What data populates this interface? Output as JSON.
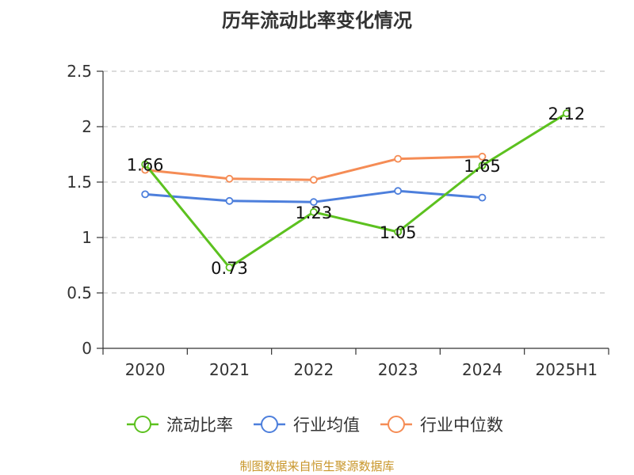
{
  "title": "历年流动比率变化情况",
  "source": "制图数据来自恒生聚源数据库",
  "chart_data": {
    "type": "line",
    "title": "历年流动比率变化情况",
    "categories": [
      "2020",
      "2021",
      "2022",
      "2023",
      "2024",
      "2025H1"
    ],
    "ylim": [
      0,
      2.5
    ],
    "yticks": [
      "0",
      "0.5",
      "1",
      "1.5",
      "2",
      "2.5"
    ],
    "grid": true,
    "legend_position": "bottom",
    "series": [
      {
        "name": "流动比率",
        "color": "#5cc11f",
        "values": [
          1.66,
          0.73,
          1.23,
          1.05,
          1.65,
          2.12
        ],
        "labels": [
          "1.66",
          "0.73",
          "1.23",
          "1.05",
          "1.65",
          "2.12"
        ]
      },
      {
        "name": "行业均值",
        "color": "#4d7fdc",
        "values": [
          1.39,
          1.33,
          1.32,
          1.42,
          1.36,
          null
        ]
      },
      {
        "name": "行业中位数",
        "color": "#f58c55",
        "values": [
          1.61,
          1.53,
          1.52,
          1.71,
          1.73,
          null
        ]
      }
    ]
  }
}
